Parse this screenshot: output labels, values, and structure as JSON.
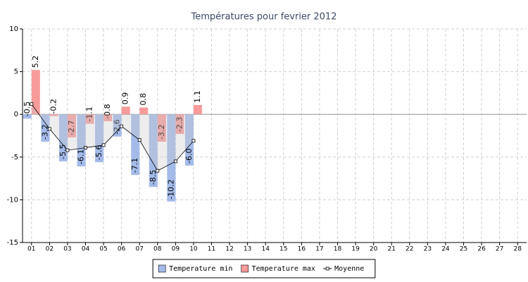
{
  "chart_data": {
    "type": "bar",
    "title": "Températures pour fevrier 2012",
    "categories": [
      "01",
      "02",
      "03",
      "04",
      "05",
      "06",
      "07",
      "08",
      "09",
      "10",
      "11",
      "12",
      "13",
      "14",
      "15",
      "16",
      "17",
      "18",
      "19",
      "20",
      "21",
      "22",
      "23",
      "24",
      "25",
      "26",
      "27",
      "28"
    ],
    "series": [
      {
        "name": "Temperature min",
        "color": "#a4bbea",
        "type": "bar",
        "values": [
          -0.5,
          -3.2,
          -5.5,
          -6.1,
          -5.6,
          -2.6,
          -7.1,
          -8.5,
          -10.2,
          -6.0,
          null,
          null,
          null,
          null,
          null,
          null,
          null,
          null,
          null,
          null,
          null,
          null,
          null,
          null,
          null,
          null,
          null,
          null
        ],
        "value_labels": [
          "-0.5",
          "-3.2",
          "-5.5",
          "-6.1",
          "-5.6",
          "-2.6",
          "-7.1",
          "-8.5",
          "-10.2",
          "-6.0",
          null,
          null,
          null,
          null,
          null,
          null,
          null,
          null,
          null,
          null,
          null,
          null,
          null,
          null,
          null,
          null,
          null,
          null
        ]
      },
      {
        "name": "Temperature max",
        "color": "#f79b9b",
        "type": "bar",
        "values": [
          5.2,
          -0.2,
          -2.7,
          -1.1,
          -0.8,
          0.9,
          0.8,
          -3.2,
          -2.3,
          1.1,
          null,
          null,
          null,
          null,
          null,
          null,
          null,
          null,
          null,
          null,
          null,
          null,
          null,
          null,
          null,
          null,
          null,
          null
        ],
        "value_labels": [
          "5.2",
          "-0.2",
          "-2.7",
          "-1.1",
          "-0.8",
          "0.9",
          "0.8",
          "-3.2",
          "-2.3",
          "1.1",
          null,
          null,
          null,
          null,
          null,
          null,
          null,
          null,
          null,
          null,
          null,
          null,
          null,
          null,
          null,
          null,
          null,
          null
        ]
      },
      {
        "name": "Moyenne",
        "color": "#000000",
        "type": "line",
        "values": [
          1.2,
          -1.7,
          -4.2,
          -3.9,
          -3.6,
          -1.4,
          -3.0,
          -6.6,
          -5.5,
          -3.1,
          null,
          null,
          null,
          null,
          null,
          null,
          null,
          null,
          null,
          null,
          null,
          null,
          null,
          null,
          null,
          null,
          null,
          null
        ]
      }
    ],
    "ylim": [
      -15,
      10
    ],
    "yticks": [
      -15,
      -10,
      -5,
      0,
      5,
      10
    ],
    "grid": true,
    "legend": "bottom"
  }
}
